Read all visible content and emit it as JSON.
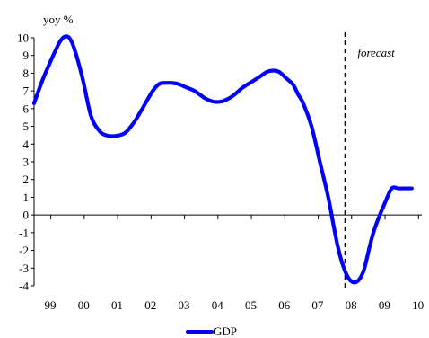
{
  "chart_data": {
    "type": "line",
    "ylabel": "yoy %",
    "ylim": [
      -4,
      10
    ],
    "yticks": [
      "10",
      "9",
      "8",
      "7",
      "6",
      "5",
      "4",
      "3",
      "2",
      "1",
      "0",
      "-1",
      "-2",
      "-3",
      "-4"
    ],
    "xlim": [
      1999,
      2010.6
    ],
    "xticks": [
      "99",
      "00",
      "01",
      "02",
      "03",
      "04",
      "05",
      "06",
      "07",
      "08",
      "09",
      "10"
    ],
    "grid": false,
    "legend_position": "bottom",
    "annotation": {
      "text": "forecast",
      "x": 2008.3
    },
    "series": [
      {
        "name": "GDP",
        "color": "#0000ff",
        "x": [
          1999.0,
          1999.25,
          1999.5,
          1999.75,
          1999.9,
          2000.05,
          2000.2,
          2000.45,
          2000.7,
          2000.95,
          2001.15,
          2001.4,
          2001.7,
          2001.9,
          2002.05,
          2002.3,
          2002.55,
          2002.75,
          2002.95,
          2003.1,
          2003.3,
          2003.55,
          2003.8,
          2004.1,
          2004.35,
          2004.6,
          2004.85,
          2005.0,
          2005.25,
          2005.5,
          2005.75,
          2006.0,
          2006.3,
          2006.55,
          2006.75,
          2006.9,
          2007.05,
          2007.3,
          2007.55,
          2007.8,
          2007.95,
          2008.1,
          2008.25,
          2008.4,
          2008.55,
          2008.7,
          2008.85,
          2008.95,
          2009.05,
          2009.15,
          2009.3,
          2009.5,
          2009.7,
          2009.9,
          2010.1,
          2010.3
        ],
        "values": [
          6.3,
          7.6,
          8.7,
          9.7,
          10.05,
          10.0,
          9.4,
          7.7,
          5.6,
          4.75,
          4.5,
          4.45,
          4.6,
          5.0,
          5.4,
          6.2,
          7.0,
          7.4,
          7.45,
          7.45,
          7.4,
          7.2,
          7.0,
          6.6,
          6.4,
          6.4,
          6.6,
          6.8,
          7.2,
          7.5,
          7.8,
          8.1,
          8.1,
          7.7,
          7.35,
          6.8,
          6.3,
          5.0,
          3.0,
          1.0,
          -0.5,
          -1.9,
          -2.9,
          -3.55,
          -3.8,
          -3.7,
          -3.2,
          -2.5,
          -1.7,
          -1.0,
          -0.2,
          0.7,
          1.5,
          1.5,
          1.5,
          1.5
        ]
      }
    ]
  }
}
